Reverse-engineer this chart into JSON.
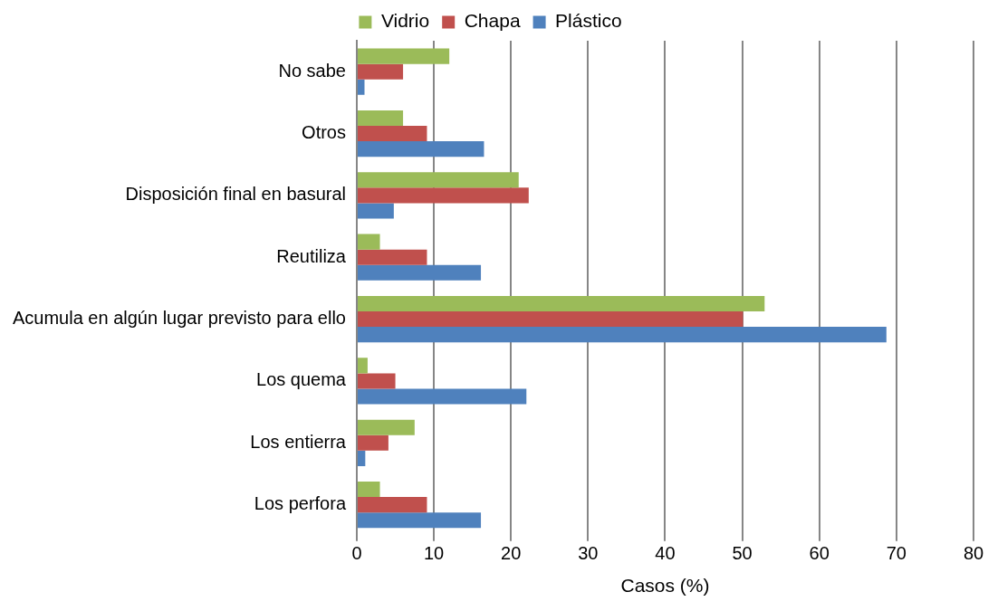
{
  "chart_data": {
    "type": "bar",
    "orientation": "horizontal",
    "xlabel": "Casos (%)",
    "categories": [
      "No sabe",
      "Otros",
      "Disposición final en basural",
      "Reutiliza",
      "Acumula en algún lugar previsto para ello",
      "Los quema",
      "Los entierra",
      "Los perfora"
    ],
    "series": [
      {
        "name": "Vidrio",
        "color": "#9bbb59",
        "values": [
          12,
          6,
          21,
          3,
          52.9,
          1.4,
          7.5,
          3
        ]
      },
      {
        "name": "Chapa",
        "color": "#c0504d",
        "values": [
          6,
          9.1,
          22.3,
          9.1,
          50.1,
          5,
          4.1,
          9.1
        ]
      },
      {
        "name": "Plástico",
        "color": "#4f81bd",
        "values": [
          1,
          16.5,
          4.8,
          16.1,
          68.7,
          22,
          1.1,
          16.1
        ]
      }
    ],
    "xlim": [
      0,
      80
    ],
    "xticks": [
      0,
      10,
      20,
      30,
      40,
      50,
      60,
      70,
      80
    ],
    "grid": "x",
    "legend": "top"
  }
}
